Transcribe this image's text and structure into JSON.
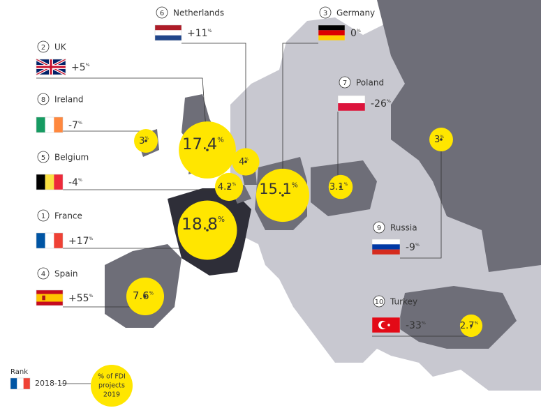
{
  "countries": [
    {
      "rank": "6",
      "name": "Netherlands",
      "change": "+11%",
      "share": 4,
      "share_label": "4%"
    },
    {
      "rank": "3",
      "name": "Germany",
      "change": "0%",
      "share": 15.1,
      "share_label": "15.1%"
    },
    {
      "rank": "2",
      "name": "UK",
      "change": "+5%",
      "share": 17.4,
      "share_label": "17.4%"
    },
    {
      "rank": "8",
      "name": "Ireland",
      "change": "-7%",
      "share": 3,
      "share_label": "3%"
    },
    {
      "rank": "5",
      "name": "Belgium",
      "change": "-4%",
      "share": 4.2,
      "share_label": "4.2%"
    },
    {
      "rank": "1",
      "name": "France",
      "change": "+17%",
      "share": 18.8,
      "share_label": "18.8%"
    },
    {
      "rank": "4",
      "name": "Spain",
      "change": "+55%",
      "share": 7.6,
      "share_label": "7.6%"
    },
    {
      "rank": "7",
      "name": "Poland",
      "change": "-26%",
      "share": 3.1,
      "share_label": "3.1%"
    },
    {
      "rank": "9",
      "name": "Russia",
      "change": "-9%",
      "share": 3,
      "share_label": "3%"
    },
    {
      "rank": "10",
      "name": "Turkey",
      "change": "-33%",
      "share": 2.7,
      "share_label": "2.7%"
    }
  ],
  "legend": {
    "rank_label": "Rank",
    "period": "2018-19",
    "bubble_label": [
      "% of FDI",
      "projects",
      "2019"
    ]
  }
}
